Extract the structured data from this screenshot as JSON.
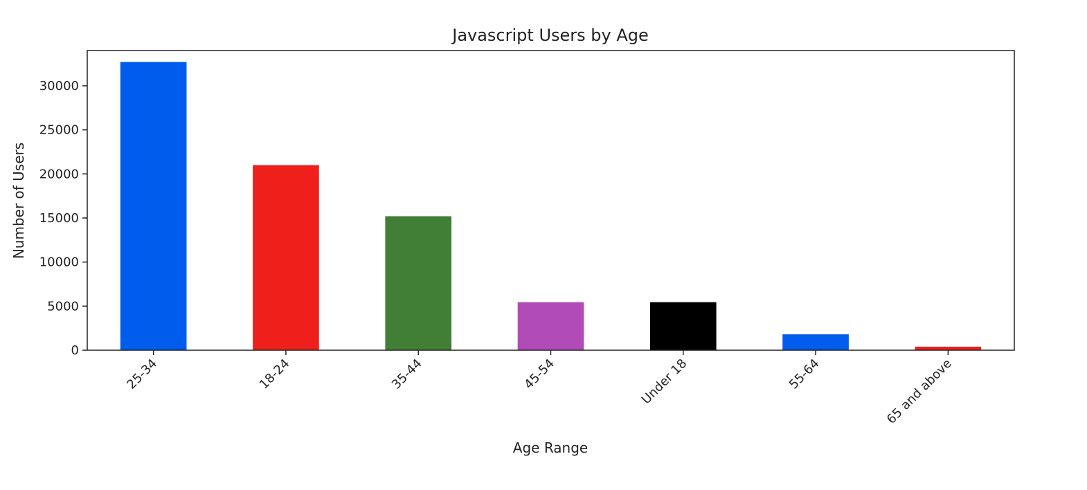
{
  "chart_data": {
    "type": "bar",
    "title": "Javascript Users by Age",
    "xlabel": "Age Range",
    "ylabel": "Number of Users",
    "categories": [
      "25-34",
      "18-24",
      "35-44",
      "45-54",
      "Under 18",
      "55-64",
      "65 and above"
    ],
    "values": [
      32700,
      21000,
      15200,
      5450,
      5450,
      1800,
      400
    ],
    "colors": [
      "#005ced",
      "#ef201c",
      "#417f36",
      "#b04bb8",
      "#000000",
      "#005ced",
      "#ef201c"
    ],
    "yticks": [
      0,
      5000,
      10000,
      15000,
      20000,
      25000,
      30000
    ],
    "ylim": [
      0,
      34000
    ],
    "grid": false,
    "legend": "none"
  }
}
